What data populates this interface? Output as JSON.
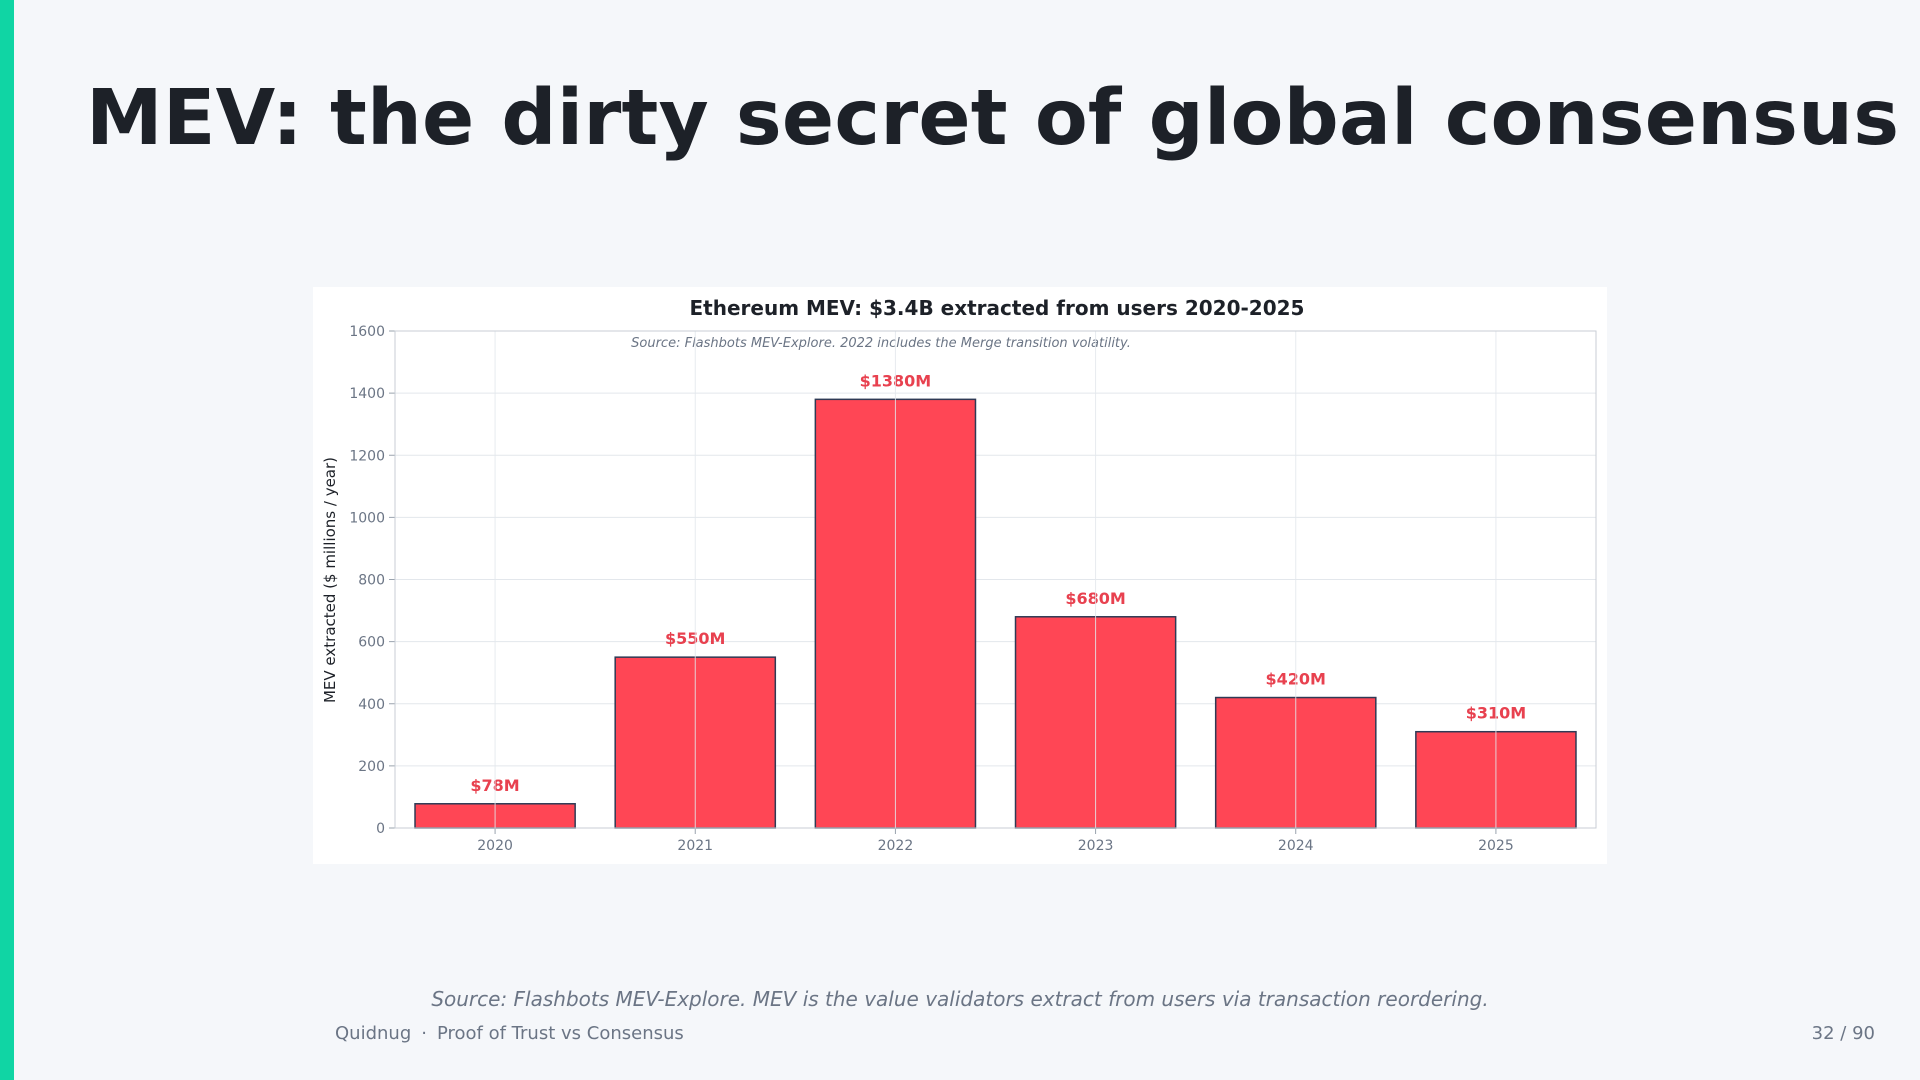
{
  "slide": {
    "title": "MEV: the dirty secret of global consensus",
    "caption": "Source: Flashbots MEV-Explore. MEV is the value validators extract from users via transaction reordering.",
    "footer_brand": "Quidnug",
    "footer_separator": "·",
    "footer_deck": "Proof of Trust vs Consensus",
    "page_number": "32 / 90"
  },
  "colors": {
    "accent": "#10d5a4",
    "bar": "#ff4655",
    "bar_edge": "#2f3a55",
    "label": "#e8414f"
  },
  "chart_data": {
    "type": "bar",
    "title": "Ethereum MEV: $3.4B extracted from users 2020-2025",
    "subtitle": "Source: Flashbots MEV-Explore. 2022 includes the Merge transition volatility.",
    "xlabel": "",
    "ylabel": "MEV extracted ($ millions / year)",
    "ylim": [
      0,
      1600
    ],
    "yticks": [
      "0",
      "200",
      "400",
      "600",
      "800",
      "1000",
      "1200",
      "1400",
      "1600"
    ],
    "categories": [
      "2020",
      "2021",
      "2022",
      "2023",
      "2024",
      "2025"
    ],
    "values": [
      78,
      550,
      1380,
      680,
      420,
      310
    ],
    "data_labels": [
      "$78M",
      "$550M",
      "$1380M",
      "$680M",
      "$420M",
      "$310M"
    ],
    "grid": true
  }
}
